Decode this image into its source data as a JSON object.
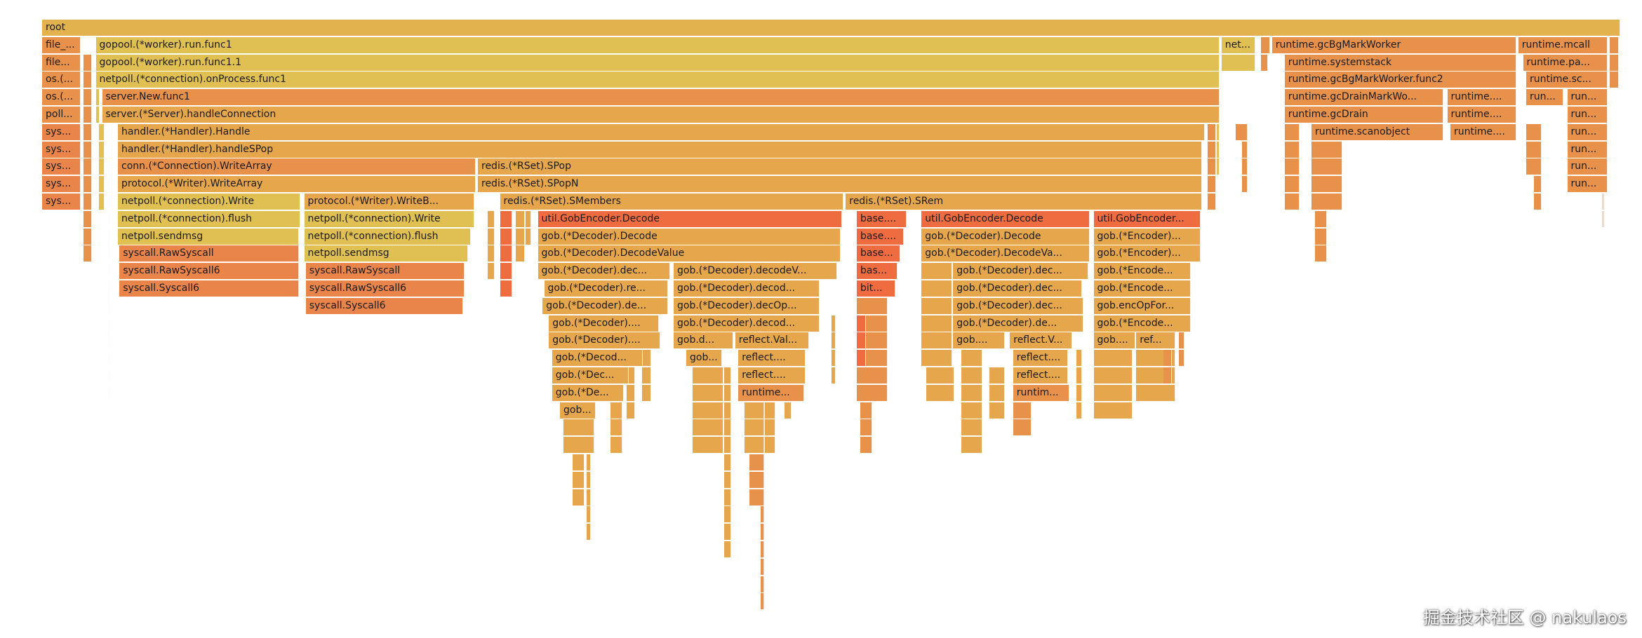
{
  "flamegraph": {
    "total_samples": 1000,
    "palette": {
      "g": "#e1b24e",
      "y": "#e0bf53",
      "t": "#e6a64c",
      "o": "#e8914a",
      "s": "#e9854a",
      "r": "#ee6c3f",
      "p": "#f0d9c8"
    },
    "frames": [
      {
        "label": "root",
        "start": 0,
        "samples": 1000,
        "depth": 0,
        "color": "g"
      },
      {
        "label": "file_...",
        "start": 0,
        "samples": 25,
        "depth": 1,
        "color": "o"
      },
      {
        "label": "gopool.(*worker).run.func1",
        "start": 34,
        "samples": 712,
        "depth": 1,
        "color": "y"
      },
      {
        "label": "net...",
        "start": 747,
        "samples": 22,
        "depth": 1,
        "color": "y"
      },
      {
        "label": "",
        "start": 772,
        "samples": 6,
        "depth": 1,
        "color": "o"
      },
      {
        "label": "runtime.gcBgMarkWorker",
        "start": 779,
        "samples": 155,
        "depth": 1,
        "color": "o"
      },
      {
        "label": "runtime.mcall",
        "start": 935,
        "samples": 57,
        "depth": 1,
        "color": "o"
      },
      {
        "label": "",
        "start": 993,
        "samples": 6,
        "depth": 1,
        "color": "o"
      },
      {
        "label": "file...",
        "start": 0,
        "samples": 25,
        "depth": 2,
        "color": "o"
      },
      {
        "label": "",
        "start": 26,
        "samples": 6,
        "depth": 2,
        "color": "o"
      },
      {
        "label": "gopool.(*worker).run.func1.1",
        "start": 34,
        "samples": 712,
        "depth": 2,
        "color": "y"
      },
      {
        "label": "",
        "start": 747,
        "samples": 22,
        "depth": 2,
        "color": "y"
      },
      {
        "label": "",
        "start": 772,
        "samples": 5,
        "depth": 2,
        "color": "o"
      },
      {
        "label": "runtime.systemstack",
        "start": 787,
        "samples": 147,
        "depth": 2,
        "color": "o"
      },
      {
        "label": "runtime.pa...",
        "start": 938,
        "samples": 54,
        "depth": 2,
        "color": "o"
      },
      {
        "label": "",
        "start": 993,
        "samples": 6,
        "depth": 2,
        "color": "o"
      },
      {
        "label": "os.(...",
        "start": 0,
        "samples": 25,
        "depth": 3,
        "color": "o"
      },
      {
        "label": "",
        "start": 26,
        "samples": 6,
        "depth": 3,
        "color": "o"
      },
      {
        "label": "netpoll.(*connection).onProcess.func1",
        "start": 34,
        "samples": 712,
        "depth": 3,
        "color": "y"
      },
      {
        "label": "runtime.gcBgMarkWorker.func2",
        "start": 787,
        "samples": 147,
        "depth": 3,
        "color": "o"
      },
      {
        "label": "runtime.sc...",
        "start": 940,
        "samples": 52,
        "depth": 3,
        "color": "o"
      },
      {
        "label": "",
        "start": 993,
        "samples": 6,
        "depth": 3,
        "color": "o"
      },
      {
        "label": "os.(...",
        "start": 0,
        "samples": 25,
        "depth": 4,
        "color": "o"
      },
      {
        "label": "",
        "start": 26,
        "samples": 6,
        "depth": 4,
        "color": "o"
      },
      {
        "label": "server.New.func1",
        "start": 38,
        "samples": 708,
        "depth": 4,
        "color": "o"
      },
      {
        "label": "runtime.gcDrainMarkWo...",
        "start": 787,
        "samples": 101,
        "depth": 4,
        "color": "o"
      },
      {
        "label": "runtime....",
        "start": 890,
        "samples": 44,
        "depth": 4,
        "color": "o"
      },
      {
        "label": "run...",
        "start": 940,
        "samples": 24,
        "depth": 4,
        "color": "o"
      },
      {
        "label": "run...",
        "start": 966,
        "samples": 26,
        "depth": 4,
        "color": "o"
      },
      {
        "label": "poll...",
        "start": 0,
        "samples": 25,
        "depth": 5,
        "color": "o"
      },
      {
        "label": "",
        "start": 26,
        "samples": 6,
        "depth": 5,
        "color": "o"
      },
      {
        "label": "server.(*Server).handleConnection",
        "start": 38,
        "samples": 708,
        "depth": 5,
        "color": "t"
      },
      {
        "label": "runtime.gcDrain",
        "start": 787,
        "samples": 101,
        "depth": 5,
        "color": "o"
      },
      {
        "label": "runtime....",
        "start": 890,
        "samples": 44,
        "depth": 5,
        "color": "o"
      },
      {
        "label": "run...",
        "start": 966,
        "samples": 26,
        "depth": 5,
        "color": "o"
      },
      {
        "label": "sys...",
        "start": 0,
        "samples": 25,
        "depth": 6,
        "color": "s"
      },
      {
        "label": "handler.(*Handler).Handle",
        "start": 48,
        "samples": 689,
        "depth": 6,
        "color": "t"
      },
      {
        "label": "",
        "start": 756,
        "samples": 8,
        "depth": 6,
        "color": "o"
      },
      {
        "label": "runtime.scanobject",
        "start": 804,
        "samples": 84,
        "depth": 6,
        "color": "o"
      },
      {
        "label": "runtime....",
        "start": 892,
        "samples": 42,
        "depth": 6,
        "color": "o"
      },
      {
        "label": "run...",
        "start": 966,
        "samples": 26,
        "depth": 6,
        "color": "o"
      },
      {
        "label": "sys...",
        "start": 0,
        "samples": 25,
        "depth": 7,
        "color": "s"
      },
      {
        "label": "handler.(*Handler).handleSPop",
        "start": 48,
        "samples": 687,
        "depth": 7,
        "color": "t"
      },
      {
        "label": "run...",
        "start": 966,
        "samples": 26,
        "depth": 7,
        "color": "o"
      },
      {
        "label": "sys...",
        "start": 0,
        "samples": 25,
        "depth": 8,
        "color": "s"
      },
      {
        "label": "conn.(*Connection).WriteArray",
        "start": 48,
        "samples": 227,
        "depth": 8,
        "color": "o"
      },
      {
        "label": "redis.(*RSet).SPop",
        "start": 276,
        "samples": 459,
        "depth": 8,
        "color": "t"
      },
      {
        "label": "run...",
        "start": 966,
        "samples": 26,
        "depth": 8,
        "color": "o"
      },
      {
        "label": "sys...",
        "start": 0,
        "samples": 25,
        "depth": 9,
        "color": "s"
      },
      {
        "label": "protocol.(*Writer).WriteArray",
        "start": 48,
        "samples": 227,
        "depth": 9,
        "color": "t"
      },
      {
        "label": "redis.(*RSet).SPopN",
        "start": 276,
        "samples": 459,
        "depth": 9,
        "color": "t"
      },
      {
        "label": "run...",
        "start": 966,
        "samples": 26,
        "depth": 9,
        "color": "o"
      },
      {
        "label": "sys...",
        "start": 0,
        "samples": 25,
        "depth": 10,
        "color": "s"
      },
      {
        "label": "netpoll.(*connection).Write",
        "start": 48,
        "samples": 116,
        "depth": 10,
        "color": "y"
      },
      {
        "label": "protocol.(*Writer).WriteB...",
        "start": 166,
        "samples": 108,
        "depth": 10,
        "color": "t"
      },
      {
        "label": "redis.(*RSet).SMembers",
        "start": 290,
        "samples": 218,
        "depth": 10,
        "color": "t"
      },
      {
        "label": "redis.(*RSet).SRem",
        "start": 509,
        "samples": 226,
        "depth": 10,
        "color": "t"
      },
      {
        "label": "netpoll.(*connection).flush",
        "start": 48,
        "samples": 116,
        "depth": 11,
        "color": "y"
      },
      {
        "label": "netpoll.(*connection).Write",
        "start": 166,
        "samples": 108,
        "depth": 11,
        "color": "y"
      },
      {
        "label": "util.GobEncoder.Decode",
        "start": 314,
        "samples": 193,
        "depth": 11,
        "color": "r"
      },
      {
        "label": "base....",
        "start": 516,
        "samples": 32,
        "depth": 11,
        "color": "r"
      },
      {
        "label": "util.GobEncoder.Decode",
        "start": 557,
        "samples": 107,
        "depth": 11,
        "color": "r"
      },
      {
        "label": "util.GobEncoder...",
        "start": 666,
        "samples": 68,
        "depth": 11,
        "color": "r"
      },
      {
        "label": "netpoll.sendmsg",
        "start": 48,
        "samples": 115,
        "depth": 12,
        "color": "y"
      },
      {
        "label": "netpoll.(*connection).flush",
        "start": 166,
        "samples": 106,
        "depth": 12,
        "color": "y"
      },
      {
        "label": "gob.(*Decoder).Decode",
        "start": 314,
        "samples": 192,
        "depth": 12,
        "color": "t"
      },
      {
        "label": "base....",
        "start": 516,
        "samples": 30,
        "depth": 12,
        "color": "r"
      },
      {
        "label": "gob.(*Decoder).Decode",
        "start": 557,
        "samples": 107,
        "depth": 12,
        "color": "t"
      },
      {
        "label": "gob.(*Encoder)...",
        "start": 666,
        "samples": 68,
        "depth": 12,
        "color": "t"
      },
      {
        "label": "syscall.RawSyscall",
        "start": 49,
        "samples": 114,
        "depth": 13,
        "color": "s"
      },
      {
        "label": "netpoll.sendmsg",
        "start": 166,
        "samples": 104,
        "depth": 13,
        "color": "y"
      },
      {
        "label": "gob.(*Decoder).DecodeValue",
        "start": 314,
        "samples": 192,
        "depth": 13,
        "color": "t"
      },
      {
        "label": "base...",
        "start": 516,
        "samples": 28,
        "depth": 13,
        "color": "r"
      },
      {
        "label": "gob.(*Decoder).DecodeVa...",
        "start": 557,
        "samples": 107,
        "depth": 13,
        "color": "t"
      },
      {
        "label": "gob.(*Encoder)...",
        "start": 666,
        "samples": 68,
        "depth": 13,
        "color": "t"
      },
      {
        "label": "syscall.RawSyscall6",
        "start": 49,
        "samples": 114,
        "depth": 14,
        "color": "s"
      },
      {
        "label": "syscall.RawSyscall",
        "start": 167,
        "samples": 101,
        "depth": 14,
        "color": "s"
      },
      {
        "label": "gob.(*Decoder).dec...",
        "start": 314,
        "samples": 84,
        "depth": 14,
        "color": "t"
      },
      {
        "label": "gob.(*Decoder).decodeV...",
        "start": 400,
        "samples": 104,
        "depth": 14,
        "color": "t"
      },
      {
        "label": "bas...",
        "start": 516,
        "samples": 26,
        "depth": 14,
        "color": "r"
      },
      {
        "label": "gob.(*Decoder).dec...",
        "start": 577,
        "samples": 86,
        "depth": 14,
        "color": "t"
      },
      {
        "label": "gob.(*Encode...",
        "start": 666,
        "samples": 62,
        "depth": 14,
        "color": "t"
      },
      {
        "label": "syscall.Syscall6",
        "start": 49,
        "samples": 114,
        "depth": 15,
        "color": "s"
      },
      {
        "label": "syscall.RawSyscall6",
        "start": 167,
        "samples": 101,
        "depth": 15,
        "color": "s"
      },
      {
        "label": "gob.(*Decoder).re...",
        "start": 318,
        "samples": 79,
        "depth": 15,
        "color": "t"
      },
      {
        "label": "gob.(*Decoder).decod...",
        "start": 400,
        "samples": 93,
        "depth": 15,
        "color": "t"
      },
      {
        "label": "bit...",
        "start": 516,
        "samples": 25,
        "depth": 15,
        "color": "r"
      },
      {
        "label": "gob.(*Decoder).dec...",
        "start": 577,
        "samples": 82,
        "depth": 15,
        "color": "t"
      },
      {
        "label": "gob.(*Encode...",
        "start": 666,
        "samples": 62,
        "depth": 15,
        "color": "t"
      },
      {
        "label": "syscall.Syscall6",
        "start": 167,
        "samples": 100,
        "depth": 16,
        "color": "s"
      },
      {
        "label": "gob.(*Decoder).de...",
        "start": 317,
        "samples": 80,
        "depth": 16,
        "color": "t"
      },
      {
        "label": "gob.(*Decoder).decOp...",
        "start": 400,
        "samples": 93,
        "depth": 16,
        "color": "t"
      },
      {
        "label": "gob.(*Decoder).dec...",
        "start": 577,
        "samples": 83,
        "depth": 16,
        "color": "t"
      },
      {
        "label": "gob.encOpFor...",
        "start": 666,
        "samples": 62,
        "depth": 16,
        "color": "t"
      },
      {
        "label": "gob.(*Decoder)....",
        "start": 321,
        "samples": 70,
        "depth": 17,
        "color": "t"
      },
      {
        "label": "gob.(*Decoder).decod...",
        "start": 400,
        "samples": 93,
        "depth": 17,
        "color": "t"
      },
      {
        "label": "gob.(*Decoder).de...",
        "start": 577,
        "samples": 83,
        "depth": 17,
        "color": "t"
      },
      {
        "label": "gob.(*Encode...",
        "start": 666,
        "samples": 62,
        "depth": 17,
        "color": "t"
      },
      {
        "label": "gob.(*Decoder)....",
        "start": 321,
        "samples": 71,
        "depth": 18,
        "color": "t"
      },
      {
        "label": "gob.d...",
        "start": 400,
        "samples": 38,
        "depth": 18,
        "color": "t"
      },
      {
        "label": "reflect.Val...",
        "start": 439,
        "samples": 47,
        "depth": 18,
        "color": "t"
      },
      {
        "label": "gob....",
        "start": 577,
        "samples": 33,
        "depth": 18,
        "color": "t"
      },
      {
        "label": "reflect.V...",
        "start": 613,
        "samples": 40,
        "depth": 18,
        "color": "t"
      },
      {
        "label": "gob....",
        "start": 666,
        "samples": 27,
        "depth": 18,
        "color": "t"
      },
      {
        "label": "ref...",
        "start": 693,
        "samples": 25,
        "depth": 18,
        "color": "t"
      },
      {
        "label": "gob.(*Decod...",
        "start": 323,
        "samples": 58,
        "depth": 19,
        "color": "t"
      },
      {
        "label": "gob...",
        "start": 408,
        "samples": 23,
        "depth": 19,
        "color": "t"
      },
      {
        "label": "reflect....",
        "start": 441,
        "samples": 43,
        "depth": 19,
        "color": "t"
      },
      {
        "label": "reflect....",
        "start": 615,
        "samples": 35,
        "depth": 19,
        "color": "t"
      },
      {
        "label": "gob.(*Dec...",
        "start": 323,
        "samples": 49,
        "depth": 20,
        "color": "t"
      },
      {
        "label": "reflect....",
        "start": 441,
        "samples": 43,
        "depth": 20,
        "color": "t"
      },
      {
        "label": "reflect....",
        "start": 615,
        "samples": 35,
        "depth": 20,
        "color": "t"
      },
      {
        "label": "gob.(*De...",
        "start": 323,
        "samples": 46,
        "depth": 21,
        "color": "t"
      },
      {
        "label": "runtime...",
        "start": 441,
        "samples": 42,
        "depth": 21,
        "color": "o"
      },
      {
        "label": "runtim...",
        "start": 615,
        "samples": 36,
        "depth": 21,
        "color": "o"
      },
      {
        "label": "gob...",
        "start": 328,
        "samples": 23,
        "depth": 22,
        "color": "t"
      }
    ],
    "unlabeled_stacks": [
      [
        26,
        6,
        6,
        13,
        "o"
      ],
      [
        36,
        4,
        6,
        10,
        "y"
      ],
      [
        34,
        3,
        4,
        5,
        "y"
      ],
      [
        42,
        1,
        6,
        21,
        "p"
      ],
      [
        282,
        5,
        11,
        14,
        "t"
      ],
      [
        290,
        8,
        11,
        15,
        "r"
      ],
      [
        300,
        6,
        11,
        13,
        "t"
      ],
      [
        306,
        4,
        11,
        12,
        "t"
      ],
      [
        738,
        6,
        6,
        10,
        "o"
      ],
      [
        744,
        2,
        6,
        8,
        "y"
      ],
      [
        330,
        20,
        23,
        24,
        "t"
      ],
      [
        336,
        8,
        25,
        27,
        "t"
      ],
      [
        345,
        3,
        25,
        29,
        "t"
      ],
      [
        360,
        8,
        20,
        24,
        "t"
      ],
      [
        370,
        6,
        19,
        22,
        "t"
      ],
      [
        380,
        6,
        19,
        21,
        "t"
      ],
      [
        412,
        20,
        20,
        24,
        "t"
      ],
      [
        432,
        5,
        20,
        30,
        "t"
      ],
      [
        445,
        20,
        22,
        24,
        "t"
      ],
      [
        448,
        10,
        25,
        27,
        "o"
      ],
      [
        455,
        3,
        28,
        33,
        "o"
      ],
      [
        457,
        1,
        22,
        33,
        "p"
      ],
      [
        470,
        5,
        19,
        22,
        "t"
      ],
      [
        480,
        4,
        18,
        20,
        "t"
      ],
      [
        500,
        3,
        17,
        20,
        "t"
      ],
      [
        516,
        20,
        16,
        21,
        "o"
      ],
      [
        516,
        6,
        17,
        19,
        "r"
      ],
      [
        518,
        8,
        22,
        24,
        "o"
      ],
      [
        557,
        20,
        14,
        19,
        "t"
      ],
      [
        560,
        18,
        20,
        21,
        "t"
      ],
      [
        582,
        14,
        19,
        24,
        "t"
      ],
      [
        600,
        10,
        20,
        22,
        "t"
      ],
      [
        615,
        12,
        22,
        23,
        "o"
      ],
      [
        655,
        4,
        19,
        22,
        "t"
      ],
      [
        666,
        25,
        19,
        22,
        "t"
      ],
      [
        693,
        25,
        19,
        21,
        "t"
      ],
      [
        710,
        6,
        19,
        20,
        "o"
      ],
      [
        720,
        4,
        15,
        19,
        "o"
      ],
      [
        787,
        10,
        6,
        10,
        "o"
      ],
      [
        804,
        20,
        7,
        10,
        "o"
      ],
      [
        806,
        8,
        11,
        13,
        "o"
      ],
      [
        760,
        4,
        6,
        9,
        "o"
      ],
      [
        940,
        10,
        6,
        8,
        "o"
      ],
      [
        945,
        5,
        9,
        10,
        "o"
      ],
      [
        988,
        2,
        6,
        11,
        "p"
      ]
    ]
  },
  "watermark": "掘金技术社区 @ nakulaos"
}
